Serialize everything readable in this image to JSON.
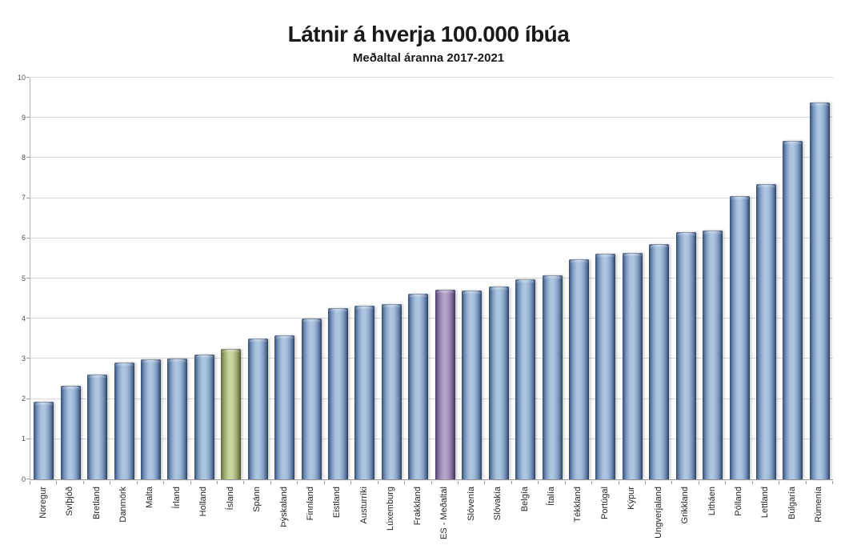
{
  "chart_data": {
    "type": "bar",
    "title": "Látnir á hverja 100.000 íbúa",
    "subtitle": "Meðaltal áranna 2017-2021",
    "categories": [
      "Noregur",
      "Svíþjóð",
      "Bretland",
      "Danmörk",
      "Malta",
      "Írland",
      "Holland",
      "Ísland",
      "Spánn",
      "Þýskaland",
      "Finnland",
      "Eistland",
      "Austurríki",
      "Lúxemburg",
      "Frakkland",
      "ES - Meðaltal",
      "Slóvenía",
      "Slóvakía",
      "Belgía",
      "Ítalía",
      "Tékkland",
      "Portúgal",
      "Kýpur",
      "Ungverjaland",
      "Grikkland",
      "Litháen",
      "Pólland",
      "Lettland",
      "Búlgaría",
      "Rúmenía"
    ],
    "values": [
      1.93,
      2.33,
      2.6,
      2.9,
      2.98,
      3.01,
      3.1,
      3.25,
      3.51,
      3.58,
      4.0,
      4.27,
      4.33,
      4.37,
      4.62,
      4.72,
      4.71,
      4.81,
      4.99,
      5.08,
      5.47,
      5.61,
      5.63,
      5.85,
      6.16,
      6.19,
      7.05,
      7.36,
      8.43,
      9.39
    ],
    "xlabel": "",
    "ylabel": "",
    "ylim": [
      0,
      10
    ],
    "ytick_step": 1,
    "grid": true,
    "legend": "none",
    "bar_styles": [
      {
        "index": 7,
        "category": "Ísland",
        "scheme": "green"
      },
      {
        "index": 15,
        "category": "ES - Meðaltal",
        "scheme": "purple"
      }
    ],
    "colors": {
      "bar_default_light": "#aec6e1",
      "bar_default_dark": "#31486b",
      "bar_island_light": "#cbd7a3",
      "bar_island_dark": "#5d6837",
      "bar_es_light": "#b6a6cc",
      "bar_es_dark": "#493d66",
      "gridline": "#d9d9d9",
      "axis_line": "#999999",
      "title_text": "#1a1a1a",
      "tick_label_text": "#4d4d4d"
    }
  }
}
